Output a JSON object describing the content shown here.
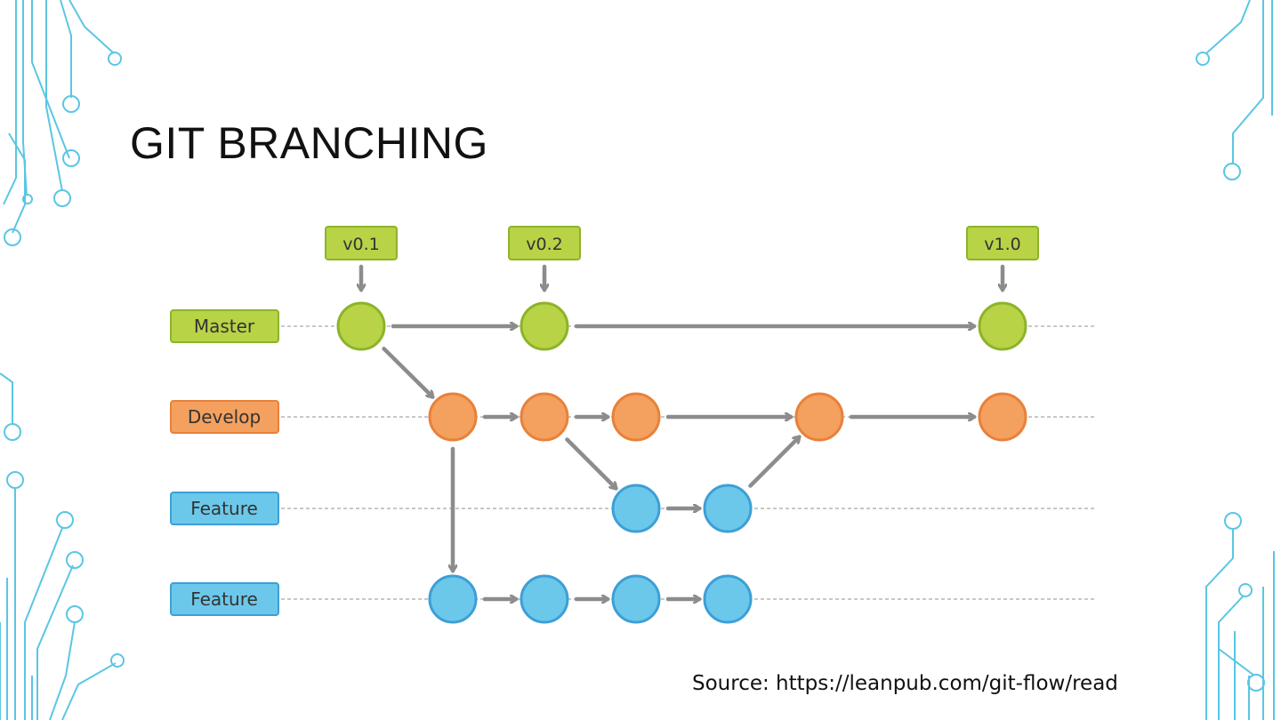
{
  "slide": {
    "title": "GIT BRANCHING",
    "source": "Source: https://leanpub.com/git-flow/read"
  },
  "colors": {
    "master_fill": "#b8d346",
    "master_stroke": "#8db32a",
    "develop_fill": "#f4a05e",
    "develop_stroke": "#e8813a",
    "feature_fill": "#6cc8ea",
    "feature_stroke": "#3d9fd6",
    "arrow": "#8c8c8c",
    "circuit": "#5bc6e3"
  },
  "branches": [
    {
      "id": "master",
      "label": "Master",
      "color": "master"
    },
    {
      "id": "develop",
      "label": "Develop",
      "color": "develop"
    },
    {
      "id": "feature1",
      "label": "Feature",
      "color": "feature"
    },
    {
      "id": "feature2",
      "label": "Feature",
      "color": "feature"
    }
  ],
  "tags": [
    {
      "label": "v0.1",
      "commit": "m1"
    },
    {
      "label": "v0.2",
      "commit": "m2"
    },
    {
      "label": "v1.0",
      "commit": "m3"
    }
  ],
  "commits": [
    {
      "id": "m1",
      "branch": "master"
    },
    {
      "id": "m2",
      "branch": "master"
    },
    {
      "id": "m3",
      "branch": "master"
    },
    {
      "id": "d1",
      "branch": "develop"
    },
    {
      "id": "d2",
      "branch": "develop"
    },
    {
      "id": "d3",
      "branch": "develop"
    },
    {
      "id": "d4",
      "branch": "develop"
    },
    {
      "id": "d5",
      "branch": "develop"
    },
    {
      "id": "fa1",
      "branch": "feature1"
    },
    {
      "id": "fa2",
      "branch": "feature1"
    },
    {
      "id": "fb1",
      "branch": "feature2"
    },
    {
      "id": "fb2",
      "branch": "feature2"
    },
    {
      "id": "fb3",
      "branch": "feature2"
    },
    {
      "id": "fb4",
      "branch": "feature2"
    }
  ],
  "edges": [
    {
      "from": "m1",
      "to": "m2"
    },
    {
      "from": "m2",
      "to": "m3"
    },
    {
      "from": "m1",
      "to": "d1"
    },
    {
      "from": "d1",
      "to": "d2"
    },
    {
      "from": "d2",
      "to": "d3"
    },
    {
      "from": "d3",
      "to": "d4"
    },
    {
      "from": "d4",
      "to": "d5"
    },
    {
      "from": "d2",
      "to": "fa1"
    },
    {
      "from": "fa1",
      "to": "fa2"
    },
    {
      "from": "fa2",
      "to": "d4"
    },
    {
      "from": "d1",
      "to": "fb1"
    },
    {
      "from": "fb1",
      "to": "fb2"
    },
    {
      "from": "fb2",
      "to": "fb3"
    },
    {
      "from": "fb3",
      "to": "fb4"
    }
  ]
}
